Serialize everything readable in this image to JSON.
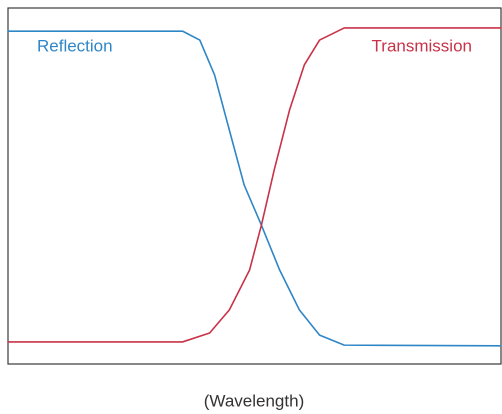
{
  "chart_data": {
    "type": "line",
    "x_label": "(Wavelength)",
    "xlim": [
      0,
      100
    ],
    "ylim": [
      0,
      100
    ],
    "series": [
      {
        "name": "Reflection",
        "color": "#2f86c6",
        "x": [
          0,
          35.4,
          38.9,
          41.9,
          44.9,
          47.9,
          51.4,
          55.1,
          59.1,
          63.2,
          68.2,
          100
        ],
        "values": [
          93.5,
          93.5,
          91.0,
          81.2,
          65.7,
          50.3,
          39.0,
          26.4,
          15.2,
          8.1,
          5.3,
          5.1
        ]
      },
      {
        "name": "Transmission",
        "color": "#c73348",
        "x": [
          0,
          35.4,
          40.9,
          44.9,
          49.0,
          51.4,
          54.0,
          57.1,
          60.1,
          63.2,
          68.2,
          100
        ],
        "values": [
          6.2,
          6.2,
          8.7,
          15.2,
          26.4,
          39.0,
          54.5,
          71.3,
          84.0,
          91.0,
          94.4,
          94.4
        ]
      }
    ]
  }
}
